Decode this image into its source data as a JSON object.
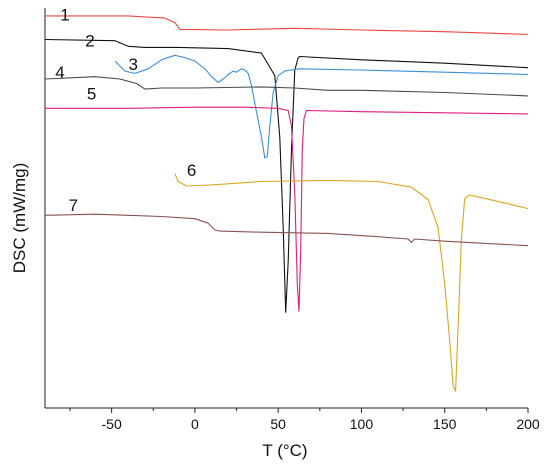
{
  "chart_data": {
    "type": "line",
    "xlabel": "T (°C)",
    "ylabel": "DSC (mW/mg)",
    "xlim": [
      -90,
      200
    ],
    "x_ticks": [
      -50,
      0,
      50,
      100,
      150,
      200
    ],
    "x_tick_labels": [
      "-50",
      "0",
      "50",
      "100",
      "150",
      "200"
    ],
    "y_ticks_shown": false,
    "grid": false,
    "series": [
      {
        "name": "1",
        "color": "#e8473f",
        "points": [
          [
            -90,
            1.8
          ],
          [
            -40,
            1.8
          ],
          [
            -18,
            1.6
          ],
          [
            -12,
            1.2
          ],
          [
            -9,
            0.6
          ],
          [
            -6,
            0.6
          ],
          [
            20,
            0.55
          ],
          [
            60,
            0.7
          ],
          [
            100,
            0.55
          ],
          [
            150,
            0.4
          ],
          [
            200,
            0.15
          ]
        ]
      },
      {
        "name": "2",
        "color": "#111111",
        "points": [
          [
            -90,
            -0.3
          ],
          [
            -48,
            -0.4
          ],
          [
            -40,
            -0.9
          ],
          [
            -30,
            -1.0
          ],
          [
            -10,
            -1.0
          ],
          [
            20,
            -1.1
          ],
          [
            40,
            -1.5
          ],
          [
            48,
            -3.5
          ],
          [
            51,
            -9
          ],
          [
            53,
            -17
          ],
          [
            54.5,
            -24.5
          ],
          [
            56,
            -20
          ],
          [
            58,
            -10
          ],
          [
            60,
            -3
          ],
          [
            62,
            -1.9
          ],
          [
            63,
            -1.8
          ],
          [
            100,
            -2.1
          ],
          [
            150,
            -2.4
          ],
          [
            200,
            -2.8
          ]
        ]
      },
      {
        "name": "3",
        "color": "#3b8fd6",
        "points": [
          [
            -48,
            -2.2
          ],
          [
            -42,
            -3.1
          ],
          [
            -36,
            -3.3
          ],
          [
            -28,
            -2.9
          ],
          [
            -20,
            -2.1
          ],
          [
            -12,
            -1.7
          ],
          [
            -6,
            -1.9
          ],
          [
            0,
            -2.2
          ],
          [
            6,
            -2.9
          ],
          [
            10,
            -3.6
          ],
          [
            14,
            -4.1
          ],
          [
            17,
            -3.8
          ],
          [
            20,
            -3.4
          ],
          [
            23,
            -3.1
          ],
          [
            25,
            -3.2
          ],
          [
            28,
            -2.9
          ],
          [
            30,
            -3.0
          ],
          [
            32,
            -3.3
          ],
          [
            34,
            -4.4
          ],
          [
            36,
            -6
          ],
          [
            38,
            -7.5
          ],
          [
            40,
            -9
          ],
          [
            42,
            -10.8
          ],
          [
            43.5,
            -10.7
          ],
          [
            45,
            -8
          ],
          [
            47,
            -5
          ],
          [
            50,
            -3.5
          ],
          [
            54,
            -3.1
          ],
          [
            58,
            -3.0
          ],
          [
            62,
            -2.9
          ],
          [
            100,
            -3.0
          ],
          [
            150,
            -3.2
          ],
          [
            200,
            -3.4
          ]
        ]
      },
      {
        "name": "4",
        "color": "#4a4a4a",
        "points": [
          [
            -90,
            -3.8
          ],
          [
            -60,
            -3.6
          ],
          [
            -45,
            -3.8
          ],
          [
            -35,
            -4.2
          ],
          [
            -30,
            -4.7
          ],
          [
            -20,
            -4.6
          ],
          [
            0,
            -4.6
          ],
          [
            40,
            -4.5
          ],
          [
            60,
            -4.6
          ],
          [
            80,
            -4.8
          ],
          [
            100,
            -4.8
          ],
          [
            150,
            -5.0
          ],
          [
            200,
            -5.3
          ]
        ]
      },
      {
        "name": "5",
        "color": "#e2197e",
        "points": [
          [
            -90,
            -6.4
          ],
          [
            -40,
            -6.4
          ],
          [
            0,
            -6.3
          ],
          [
            30,
            -6.3
          ],
          [
            50,
            -6.4
          ],
          [
            56,
            -6.6
          ],
          [
            58,
            -8
          ],
          [
            60,
            -14
          ],
          [
            61.5,
            -22
          ],
          [
            62.5,
            -24.4
          ],
          [
            63.5,
            -19
          ],
          [
            64.5,
            -10
          ],
          [
            65.5,
            -7.3
          ],
          [
            67,
            -6.6
          ],
          [
            100,
            -6.7
          ],
          [
            150,
            -6.8
          ],
          [
            200,
            -6.9
          ]
        ]
      },
      {
        "name": "6",
        "color": "#d9a520",
        "points": [
          [
            -12,
            -12.2
          ],
          [
            -10,
            -12.9
          ],
          [
            -5,
            -13.3
          ],
          [
            10,
            -13.2
          ],
          [
            40,
            -12.9
          ],
          [
            80,
            -12.8
          ],
          [
            110,
            -12.9
          ],
          [
            130,
            -13.4
          ],
          [
            140,
            -14.5
          ],
          [
            146,
            -17
          ],
          [
            150,
            -22
          ],
          [
            153,
            -27
          ],
          [
            155,
            -31
          ],
          [
            156.5,
            -31.5
          ],
          [
            158,
            -26
          ],
          [
            160,
            -18
          ],
          [
            162,
            -14.4
          ],
          [
            165,
            -14.1
          ],
          [
            180,
            -14.6
          ],
          [
            200,
            -15.3
          ]
        ]
      },
      {
        "name": "7",
        "color": "#8a5050",
        "points": [
          [
            -90,
            -15.9
          ],
          [
            -60,
            -15.8
          ],
          [
            -40,
            -15.9
          ],
          [
            -20,
            -16.0
          ],
          [
            0,
            -16.2
          ],
          [
            8,
            -16.6
          ],
          [
            12,
            -17.2
          ],
          [
            15,
            -17.3
          ],
          [
            40,
            -17.4
          ],
          [
            80,
            -17.5
          ],
          [
            110,
            -17.8
          ],
          [
            128,
            -18.0
          ],
          [
            130,
            -18.3
          ],
          [
            132,
            -18.0
          ],
          [
            150,
            -18.2
          ],
          [
            200,
            -18.6
          ]
        ]
      }
    ],
    "curve_labels": [
      {
        "text": "1",
        "x": -78,
        "y": 1.4
      },
      {
        "text": "2",
        "x": -63,
        "y": -0.9
      },
      {
        "text": "3",
        "x": -37,
        "y": -3.0
      },
      {
        "text": "4",
        "x": -81,
        "y": -3.7
      },
      {
        "text": "5",
        "x": -62,
        "y": -5.6
      },
      {
        "text": "6",
        "x": -2,
        "y": -12.4
      },
      {
        "text": "7",
        "x": -73,
        "y": -15.5
      }
    ]
  }
}
